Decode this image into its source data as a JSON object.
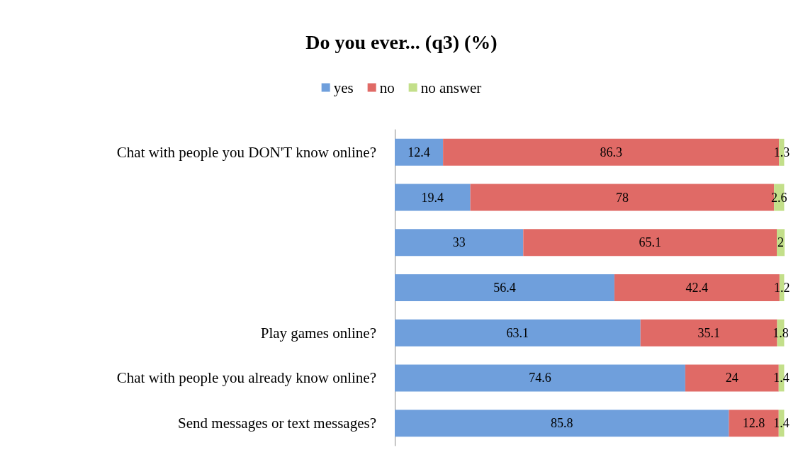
{
  "chart_data": {
    "type": "bar",
    "orientation": "horizontal",
    "stacked": true,
    "title": "Do you ever... (q3) (%)",
    "legend": "top",
    "data_labels": true,
    "categories": [
      "Chat with people you DON'T know online?",
      null,
      null,
      null,
      "Play games online?",
      "Chat with people you already know online?",
      "Send messages or text messages?"
    ],
    "series": [
      {
        "name": "yes",
        "color": "#6f9fdc",
        "values": [
          12.4,
          19.4,
          33,
          56.4,
          63.1,
          74.6,
          85.8
        ]
      },
      {
        "name": "no",
        "color": "#e06a66",
        "values": [
          86.3,
          78,
          65.1,
          42.4,
          35.1,
          24,
          12.8
        ]
      },
      {
        "name": "no answer",
        "color": "#c3df8a",
        "values": [
          1.3,
          2.6,
          2,
          1.2,
          1.8,
          1.4,
          1.4
        ]
      }
    ]
  }
}
